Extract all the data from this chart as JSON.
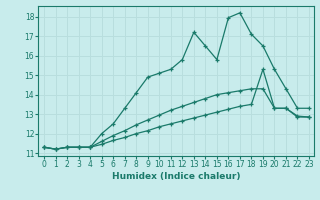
{
  "xlabel": "Humidex (Indice chaleur)",
  "bg_color": "#c8ecec",
  "grid_color": "#b8dede",
  "line_color": "#1a7a6a",
  "xlim": [
    -0.5,
    23.4
  ],
  "ylim": [
    10.85,
    18.55
  ],
  "yticks": [
    11,
    12,
    13,
    14,
    15,
    16,
    17,
    18
  ],
  "xticks": [
    0,
    1,
    2,
    3,
    4,
    5,
    6,
    7,
    8,
    9,
    10,
    11,
    12,
    13,
    14,
    15,
    16,
    17,
    18,
    19,
    20,
    21,
    22,
    23
  ],
  "line1_x": [
    0,
    1,
    2,
    3,
    4,
    5,
    6,
    7,
    8,
    9,
    10,
    11,
    12,
    13,
    14,
    15,
    16,
    17,
    18,
    19,
    20,
    21,
    22,
    23
  ],
  "line1_y": [
    11.3,
    11.2,
    11.3,
    11.3,
    11.3,
    12.0,
    12.5,
    13.3,
    14.1,
    14.9,
    15.1,
    15.3,
    15.8,
    17.2,
    16.5,
    15.8,
    17.95,
    18.2,
    17.1,
    16.5,
    15.3,
    14.3,
    13.3,
    13.3
  ],
  "line2_x": [
    0,
    1,
    2,
    3,
    4,
    5,
    6,
    7,
    8,
    9,
    10,
    11,
    12,
    13,
    14,
    15,
    16,
    17,
    18,
    19,
    20,
    21,
    22,
    23
  ],
  "line2_y": [
    11.3,
    11.2,
    11.3,
    11.3,
    11.3,
    11.6,
    11.9,
    12.15,
    12.45,
    12.7,
    12.95,
    13.2,
    13.4,
    13.6,
    13.8,
    14.0,
    14.1,
    14.2,
    14.3,
    14.3,
    13.3,
    13.3,
    12.9,
    12.85
  ],
  "line3_x": [
    0,
    1,
    2,
    3,
    4,
    5,
    6,
    7,
    8,
    9,
    10,
    11,
    12,
    13,
    14,
    15,
    16,
    17,
    18,
    19,
    20,
    21,
    22,
    23
  ],
  "line3_y": [
    11.3,
    11.2,
    11.3,
    11.3,
    11.3,
    11.45,
    11.65,
    11.8,
    12.0,
    12.15,
    12.35,
    12.5,
    12.65,
    12.8,
    12.95,
    13.1,
    13.25,
    13.4,
    13.5,
    15.3,
    13.3,
    13.3,
    12.85,
    12.85
  ]
}
